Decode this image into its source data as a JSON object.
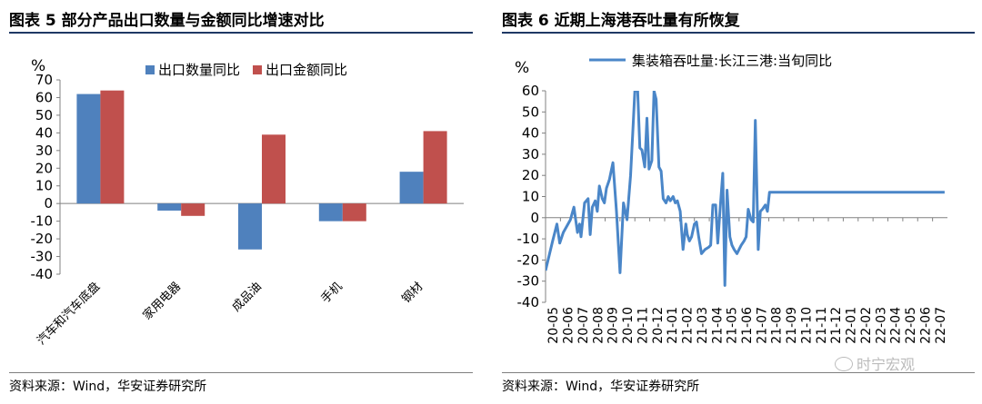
{
  "left_panel": {
    "title": "图表 5  部分产品出口数量与金额同比增速对比",
    "source": "资料来源：Wind，华安证券研究所"
  },
  "right_panel": {
    "title": "图表 6 近期上海港吞吐量有所恢复",
    "source": "资料来源：Wind，华安证券研究所"
  },
  "watermark": "时宁宏观",
  "colors": {
    "blue": "#4f81bd",
    "red": "#c0504d",
    "line": "#4a86c8",
    "rule_dark": "#1f3864",
    "rule_light": "#7f7f7f"
  },
  "chart_data": [
    {
      "type": "bar",
      "unit_label": "%",
      "categories": [
        "汽车和汽车底盘",
        "家用电器",
        "成品油",
        "手机",
        "钢材"
      ],
      "series": [
        {
          "name": "出口数量同比",
          "color": "#4f81bd",
          "values": [
            62,
            -4,
            -26,
            -10,
            18
          ]
        },
        {
          "name": "出口金额同比",
          "color": "#c0504d",
          "values": [
            64,
            -7,
            39,
            -10,
            41
          ]
        }
      ],
      "ylim": [
        -40,
        70
      ],
      "yticks": [
        70,
        60,
        50,
        40,
        30,
        20,
        10,
        0,
        -10,
        -20,
        -30,
        -40
      ],
      "legend": "top-right"
    },
    {
      "type": "line",
      "unit_label": "%",
      "series": [
        {
          "name": "集装箱吞吐量:长江三港:当旬同比",
          "color": "#4a86c8",
          "x_index": [
            0,
            1,
            1.6,
            2,
            2.5,
            3,
            3.5,
            4,
            4.5,
            4.8,
            5,
            5.5,
            6,
            6.3,
            6.6,
            7,
            7.3,
            7.6,
            8,
            8.3,
            8.6,
            9,
            9.5,
            10,
            10.5,
            11,
            11.5,
            12,
            12.3,
            12.6,
            13,
            13.3,
            13.6,
            14,
            14.3,
            14.6,
            15,
            15.3,
            15.6,
            16,
            16.3,
            16.6,
            17,
            17.3,
            17.6,
            18,
            18.3,
            18.6,
            19,
            19.4,
            19.8,
            20,
            20.3,
            20.6,
            21,
            21.3,
            21.6,
            22,
            22.5,
            23,
            23.3,
            23.6,
            24,
            24.3,
            24.6,
            25,
            25.3,
            25.6,
            26,
            26.3,
            26.6,
            27,
            27.3,
            27.6,
            28,
            28.3,
            28.6,
            29,
            29.3,
            29.6,
            30,
            30.3,
            30.6,
            31,
            31.3,
            31.6,
            32,
            32.3,
            32.6,
            33,
            33.3,
            33.6,
            34,
            34.3,
            34.6,
            35,
            35.3,
            35.6,
            36,
            36.3,
            36.6,
            37,
            37.3,
            37.6,
            38,
            38.3,
            38.6,
            39,
            39.3,
            39.6,
            40,
            40.3,
            40.6,
            41,
            41.3,
            41.6,
            42,
            42.3,
            42.6,
            43,
            43.3,
            43.6,
            44,
            44.3,
            44.6,
            45,
            45.3,
            45.6,
            46,
            46.3,
            46.6,
            47,
            47.3,
            47.6,
            48,
            48.3,
            48.6,
            49,
            49.3,
            49.6,
            50,
            50.5,
            51,
            51.5,
            52,
            52.3,
            52.6,
            53,
            53.3,
            53.6,
            54,
            54.3,
            54.6,
            55,
            55.3,
            55.6,
            56,
            56.3,
            56.6
          ],
          "values": [
            -25,
            -11,
            -3,
            -12,
            -7,
            -4,
            -1,
            5,
            -7,
            -3,
            -9,
            7,
            9,
            -8,
            5,
            8,
            3,
            15,
            9,
            7,
            14,
            18,
            26,
            3,
            -26,
            7,
            -1,
            20,
            40,
            62,
            60,
            33,
            32,
            24,
            47,
            23,
            27,
            62,
            56,
            24,
            22,
            9,
            7,
            10,
            8,
            10,
            7,
            8,
            3,
            -15,
            -3,
            -8,
            -11,
            -9,
            -3,
            -2,
            -9,
            -17,
            -15,
            -14,
            -13,
            6,
            6,
            -12,
            3,
            21,
            -32,
            13,
            -9,
            -13,
            -15,
            -17,
            -15,
            -13,
            -11,
            -9,
            4,
            -1,
            -2,
            46,
            -15,
            3,
            4,
            6,
            3,
            12,
            12,
            12,
            12,
            12,
            12,
            12,
            12,
            12,
            12,
            12,
            12,
            12,
            12,
            12,
            12,
            12,
            12,
            12,
            12,
            12,
            12,
            12,
            12,
            12,
            12,
            12,
            12,
            12,
            12,
            12,
            12,
            12,
            12,
            12,
            12,
            12,
            12,
            12,
            12,
            12,
            12,
            12,
            12,
            12,
            12,
            12,
            12,
            12,
            12,
            12,
            12,
            12,
            12,
            12,
            12,
            12,
            12,
            12,
            12,
            12,
            12,
            12,
            12,
            12,
            12,
            12,
            12,
            12,
            12,
            12,
            12,
            12,
            12
          ]
        }
      ],
      "x_tick_labels": [
        "20-05",
        "20-06",
        "20-07",
        "20-08",
        "20-09",
        "20-10",
        "20-11",
        "20-12",
        "21-01",
        "21-02",
        "21-03",
        "21-04",
        "21-05",
        "21-06",
        "21-07",
        "21-08",
        "21-09",
        "21-10",
        "21-11",
        "21-12",
        "22-01",
        "22-02",
        "22-03",
        "22-04",
        "22-05",
        "22-06",
        "22-07"
      ],
      "ylim": [
        -40,
        60
      ],
      "yticks": [
        60,
        50,
        40,
        30,
        20,
        10,
        0,
        -10,
        -20,
        -30,
        -40
      ],
      "legend": "top"
    }
  ]
}
